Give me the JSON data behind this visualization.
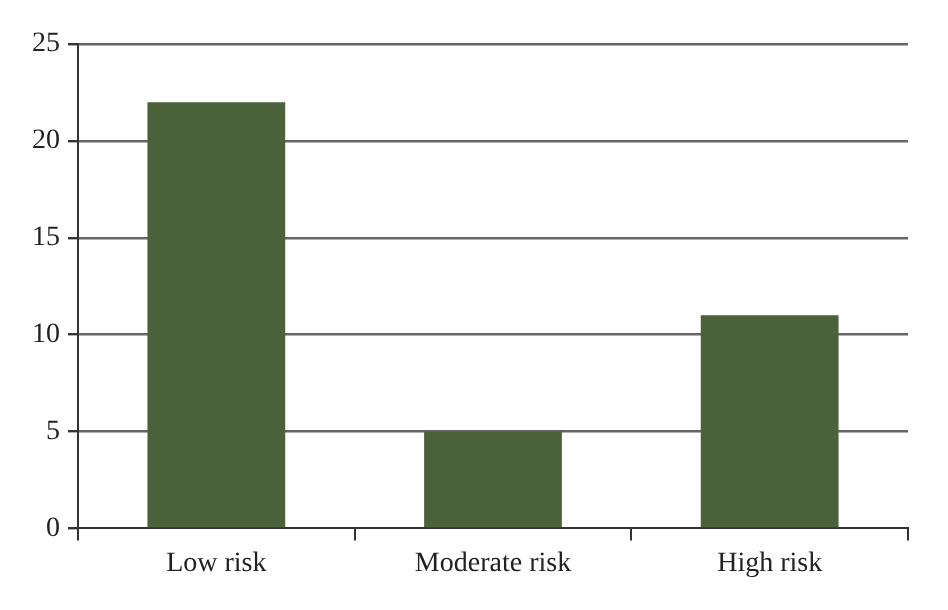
{
  "chart_data": {
    "type": "bar",
    "categories": [
      "Low risk",
      "Moderate risk",
      "High risk"
    ],
    "values": [
      22,
      5,
      11
    ],
    "color": "#4a6139",
    "ylim": [
      0,
      25
    ],
    "yticks": [
      0,
      5,
      10,
      15,
      20,
      25
    ],
    "grid": "y"
  }
}
